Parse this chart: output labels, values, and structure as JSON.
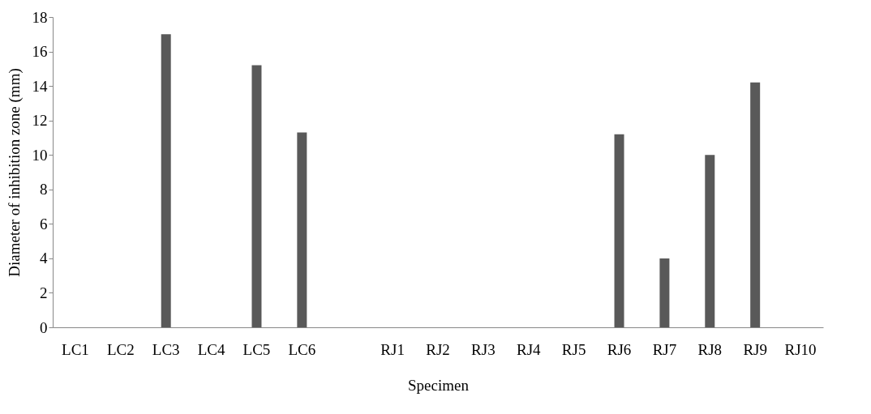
{
  "chart_data": {
    "type": "bar",
    "xlabel": "Specimen",
    "ylabel": "Diameter of inhibition zone (mm)",
    "categories": [
      "LC1",
      "LC2",
      "LC3",
      "LC4",
      "LC5",
      "LC6",
      null,
      "RJ1",
      "RJ2",
      "RJ3",
      "RJ4",
      "RJ5",
      "RJ6",
      "RJ7",
      "RJ8",
      "RJ9",
      "RJ10"
    ],
    "values": [
      0,
      0,
      17,
      0,
      15.2,
      11.3,
      null,
      0,
      0,
      0,
      0,
      0,
      11.2,
      4,
      10,
      14.2,
      0
    ],
    "color": "#595959",
    "ylim": [
      0,
      18
    ],
    "yticks": [
      0,
      2,
      4,
      6,
      8,
      10,
      12,
      14,
      16,
      18
    ],
    "grid": false
  }
}
